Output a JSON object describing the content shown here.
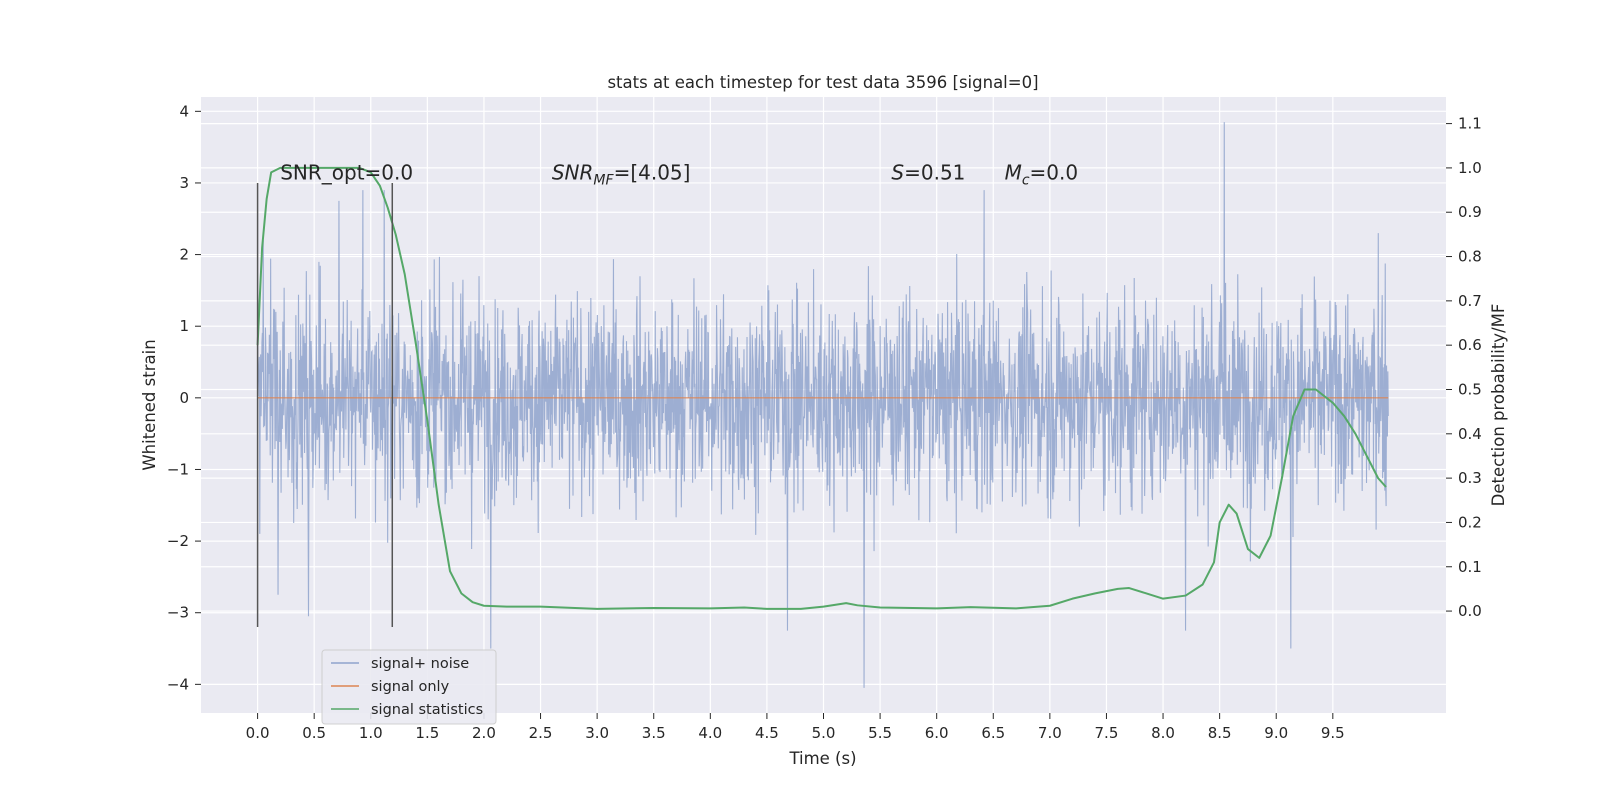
{
  "chart_data": {
    "type": "line",
    "title": "stats at each timestep for test data 3596 [signal=0]",
    "xlabel": "Time (s)",
    "ylabel": "Whitened strain",
    "ylabel_right": "Detection probability/MF",
    "xlim": [
      -0.5,
      10.5
    ],
    "ylim": [
      -4.4,
      4.2
    ],
    "ylim_right": [
      -0.23,
      1.16
    ],
    "x_ticks": [
      "0.0",
      "0.5",
      "1.0",
      "1.5",
      "2.0",
      "2.5",
      "3.0",
      "3.5",
      "4.0",
      "4.5",
      "5.0",
      "5.5",
      "6.0",
      "6.5",
      "7.0",
      "7.5",
      "8.0",
      "8.5",
      "9.0",
      "9.5"
    ],
    "y_ticks": [
      "−4",
      "−3",
      "−2",
      "−1",
      "0",
      "1",
      "2",
      "3",
      "4"
    ],
    "y_ticks_right": [
      "0.0",
      "0.1",
      "0.2",
      "0.3",
      "0.4",
      "0.5",
      "0.6",
      "0.7",
      "0.8",
      "0.9",
      "1.0",
      "1.1"
    ],
    "grid": true,
    "legend_position": "lower-left",
    "series": [
      {
        "name": "signal+ noise",
        "color": "#8fa3cd",
        "x_range": [
          0.0,
          9.99
        ],
        "approx_band": [
          -1.5,
          1.5
        ],
        "extremes": [
          {
            "x": 0.0,
            "y": 1.5
          },
          {
            "x": 0.02,
            "y": -1.9
          },
          {
            "x": 0.05,
            "y": 2.2
          },
          {
            "x": 0.18,
            "y": -2.75
          },
          {
            "x": 0.45,
            "y": -3.05
          },
          {
            "x": 0.72,
            "y": 2.75
          },
          {
            "x": 0.93,
            "y": 2.9
          },
          {
            "x": 1.12,
            "y": 2.9
          },
          {
            "x": 2.06,
            "y": -3.5
          },
          {
            "x": 4.68,
            "y": -3.25
          },
          {
            "x": 5.36,
            "y": -4.05
          },
          {
            "x": 6.42,
            "y": 2.9
          },
          {
            "x": 8.2,
            "y": -3.25
          },
          {
            "x": 8.54,
            "y": 3.85
          },
          {
            "x": 9.13,
            "y": -3.5
          },
          {
            "x": 9.9,
            "y": 2.3
          }
        ]
      },
      {
        "name": "signal only",
        "color": "#dd8452",
        "x": [
          0.0,
          9.99
        ],
        "y": [
          0.0,
          0.0
        ]
      },
      {
        "name": "signal statistics",
        "color": "#55a868",
        "axis": "right",
        "x": [
          0.0,
          0.04,
          0.08,
          0.12,
          0.2,
          0.3,
          0.5,
          0.7,
          0.9,
          1.0,
          1.08,
          1.15,
          1.22,
          1.3,
          1.4,
          1.5,
          1.6,
          1.7,
          1.8,
          1.9,
          2.0,
          2.2,
          2.5,
          3.0,
          3.5,
          4.0,
          4.3,
          4.5,
          4.8,
          5.0,
          5.2,
          5.3,
          5.5,
          6.0,
          6.3,
          6.7,
          7.0,
          7.2,
          7.4,
          7.6,
          7.7,
          7.85,
          8.0,
          8.2,
          8.35,
          8.45,
          8.5,
          8.58,
          8.65,
          8.75,
          8.85,
          8.95,
          9.05,
          9.15,
          9.25,
          9.35,
          9.5,
          9.6,
          9.7,
          9.8,
          9.9,
          9.97
        ],
        "y": [
          0.6,
          0.82,
          0.93,
          0.99,
          1.0,
          1.0,
          1.0,
          1.0,
          1.0,
          0.99,
          0.96,
          0.91,
          0.85,
          0.76,
          0.6,
          0.43,
          0.24,
          0.09,
          0.04,
          0.02,
          0.012,
          0.01,
          0.01,
          0.005,
          0.007,
          0.006,
          0.008,
          0.005,
          0.005,
          0.01,
          0.018,
          0.013,
          0.008,
          0.006,
          0.009,
          0.006,
          0.012,
          0.028,
          0.04,
          0.05,
          0.052,
          0.04,
          0.028,
          0.035,
          0.06,
          0.11,
          0.2,
          0.24,
          0.22,
          0.14,
          0.12,
          0.17,
          0.3,
          0.44,
          0.5,
          0.5,
          0.47,
          0.44,
          0.4,
          0.35,
          0.3,
          0.28
        ]
      }
    ],
    "vlines": {
      "x": [
        0.0,
        1.19
      ],
      "y_range": [
        -3.2,
        3.0
      ],
      "color": "#555555"
    },
    "annotations": [
      {
        "text": "SNR_opt=0.0",
        "x": 0.2,
        "y": 3.05
      },
      {
        "text": "SNR",
        "sub": "MF",
        "suffix": "=[4.05]",
        "italic": true,
        "x": 2.6,
        "y": 3.05
      },
      {
        "text": "S",
        "suffix": "=0.51",
        "italic": true,
        "x": 5.6,
        "y": 3.05
      },
      {
        "text": "M",
        "sub": "c",
        "suffix": "=0.0",
        "italic": true,
        "x": 6.6,
        "y": 3.05
      }
    ]
  }
}
